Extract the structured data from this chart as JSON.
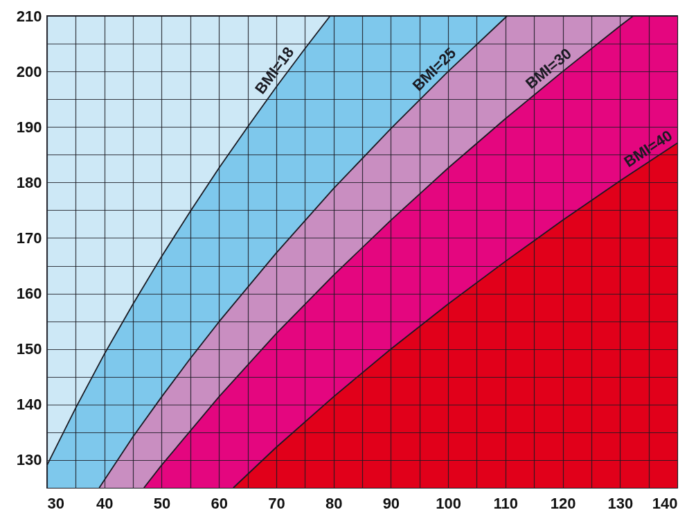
{
  "chart_data": {
    "type": "area",
    "xlim": [
      30,
      140
    ],
    "ylim": [
      125,
      210
    ],
    "xticks": [
      30,
      {
        "value": 35,
        "label": null
      },
      40,
      {
        "value": 45,
        "label": null
      },
      50,
      {
        "value": 55,
        "label": null
      },
      60,
      {
        "value": 65,
        "label": null
      },
      70,
      {
        "value": 75,
        "label": null
      },
      80,
      {
        "value": 85,
        "label": null
      },
      90,
      {
        "value": 95,
        "label": null
      },
      100,
      {
        "value": 105,
        "label": null
      },
      110,
      {
        "value": 115,
        "label": null
      },
      120,
      {
        "value": 125,
        "label": null
      },
      130,
      {
        "value": 135,
        "label": null
      },
      140
    ],
    "yticks": [
      {
        "value": 125,
        "label": null
      },
      130,
      {
        "value": 135,
        "label": null
      },
      140,
      {
        "value": 145,
        "label": null
      },
      150,
      {
        "value": 155,
        "label": null
      },
      160,
      {
        "value": 165,
        "label": null
      },
      170,
      {
        "value": 175,
        "label": null
      },
      180,
      {
        "value": 185,
        "label": null
      },
      190,
      {
        "value": 195,
        "label": null
      },
      200,
      {
        "value": 205,
        "label": null
      },
      210
    ],
    "grid": true,
    "series": [
      {
        "color": "#cde8f6",
        "x": [
          30,
          79.4
        ],
        "values": [
          210,
          210
        ]
      },
      {
        "name": "BMI=18",
        "color": "#7ec8ec",
        "x": [
          30,
          35,
          40,
          45,
          50,
          55,
          60,
          65,
          70,
          75,
          79.4,
          140
        ],
        "values": [
          129.1,
          139.4,
          149.1,
          158.1,
          166.7,
          174.8,
          182.6,
          190,
          197.2,
          204.1,
          210,
          210
        ]
      },
      {
        "name": "BMI=25",
        "color": "#c98ec1",
        "x": [
          39.1,
          45,
          50,
          55,
          60,
          70,
          80,
          90,
          100,
          110.3,
          140
        ],
        "values": [
          125,
          134.2,
          141.4,
          148.3,
          154.9,
          167.3,
          178.9,
          189.7,
          200,
          210,
          210
        ]
      },
      {
        "name": "BMI=30",
        "color": "#e4067f",
        "x": [
          46.9,
          50,
          60,
          70,
          80,
          90,
          100,
          110,
          120,
          130,
          132.3,
          140
        ],
        "values": [
          125,
          129.1,
          141.4,
          152.8,
          163.3,
          173.2,
          182.6,
          191.5,
          200,
          208.2,
          210,
          210
        ]
      },
      {
        "name": "BMI=40",
        "color": "#e1001a",
        "x": [
          62.5,
          70,
          80,
          90,
          100,
          110,
          120,
          130,
          140
        ],
        "values": [
          125,
          132.3,
          141.4,
          150,
          158.1,
          165.8,
          173.2,
          180.3,
          187.1
        ]
      }
    ]
  }
}
